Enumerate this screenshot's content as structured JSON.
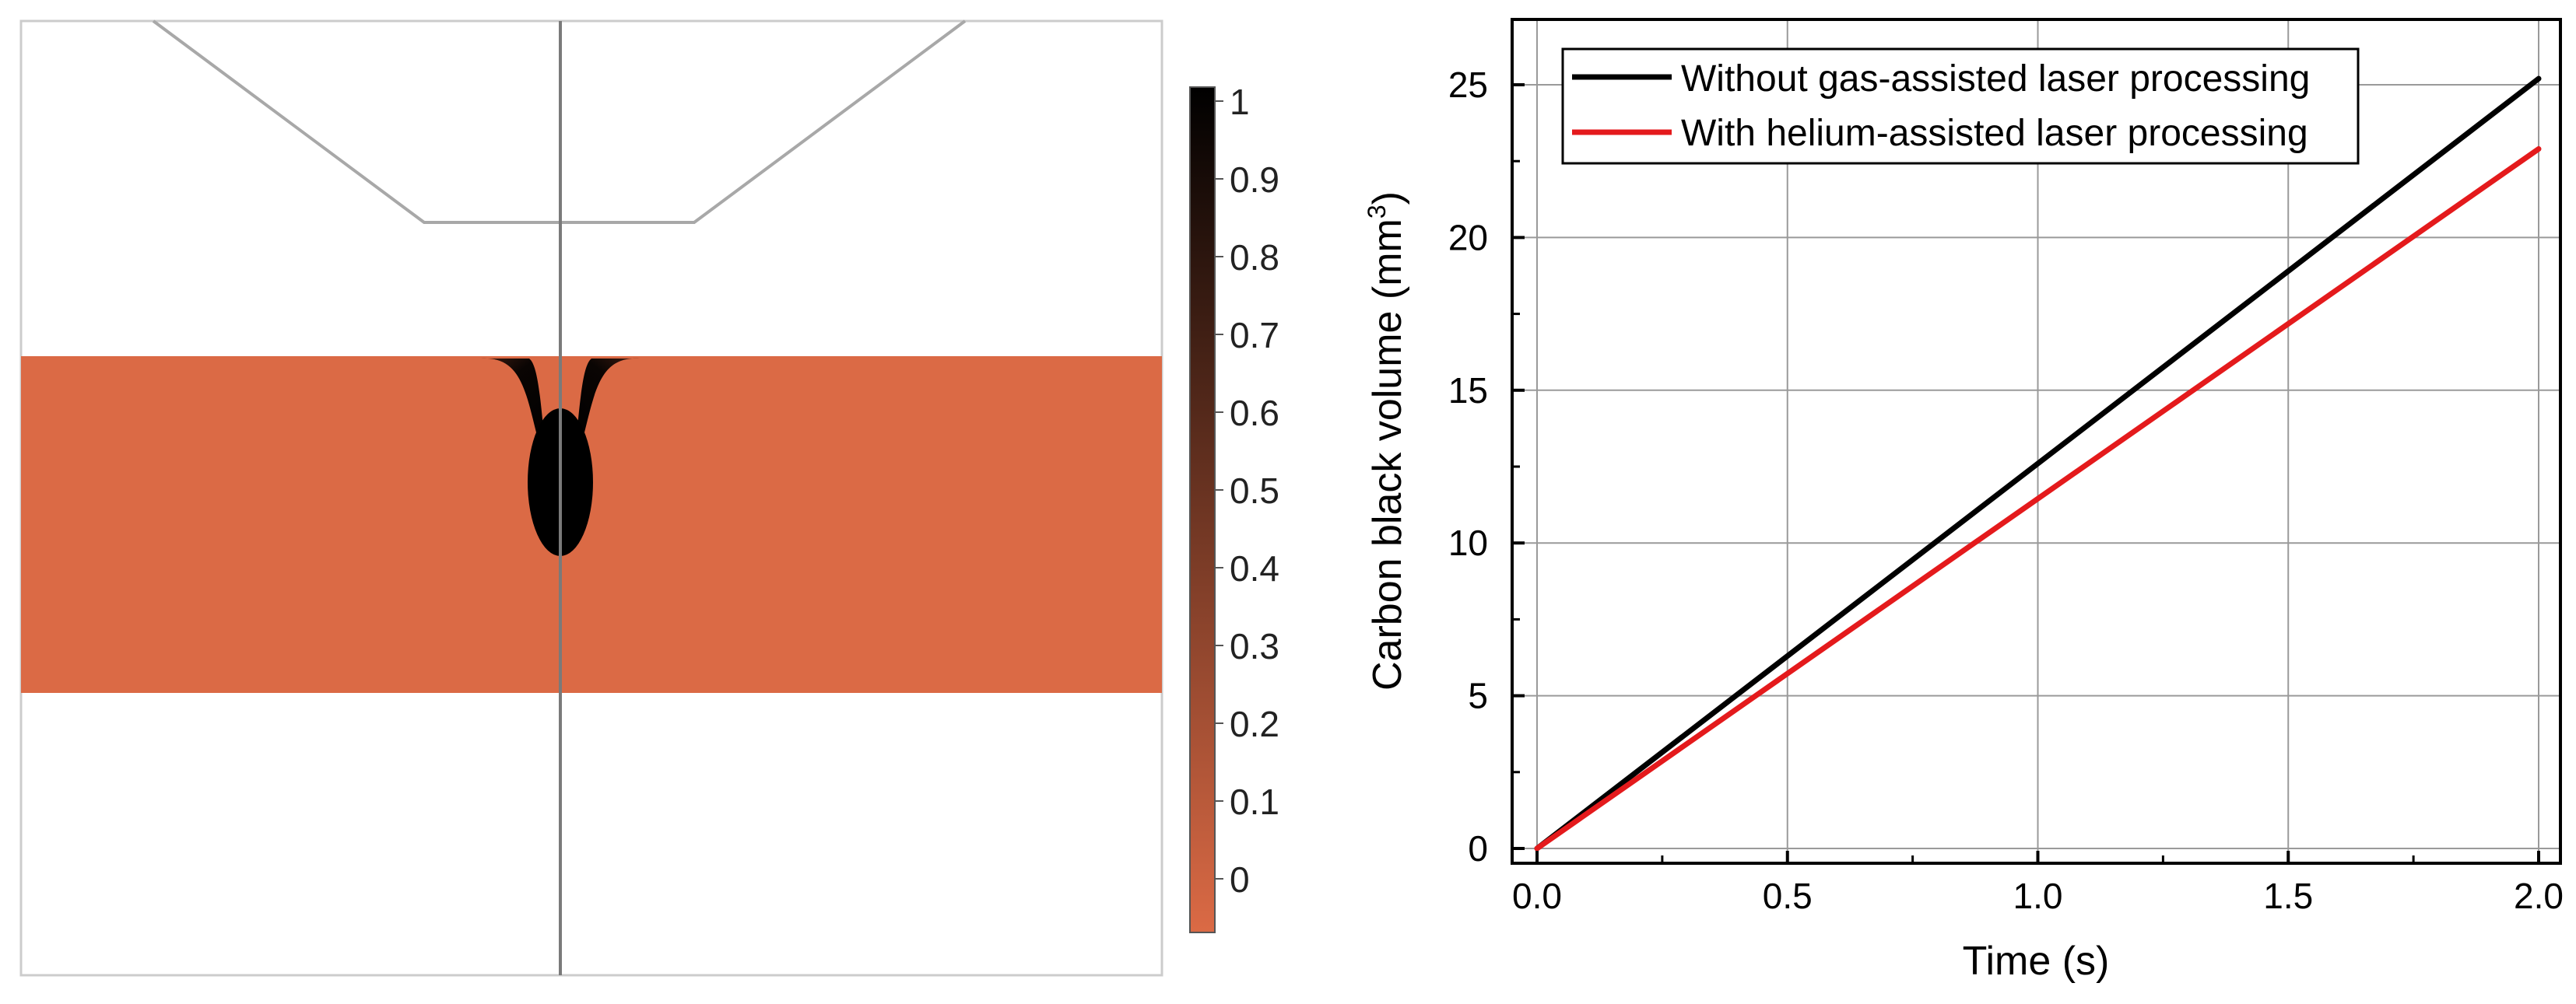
{
  "chart_data": [
    {
      "type": "heatmap",
      "colorbar": {
        "ticks": [
          "1",
          "0.9",
          "0.8",
          "0.7",
          "0.6",
          "0.5",
          "0.4",
          "0.3",
          "0.2",
          "0.1",
          "0"
        ],
        "range": [
          0,
          1
        ],
        "colors": {
          "low": "#db6a45",
          "high": "#000000"
        }
      },
      "colors": {
        "material": "#db6a45",
        "background": "#ffffff",
        "nozzle_outline": "#a8a8a8",
        "axis_line": "#7a7a7a"
      }
    },
    {
      "type": "line",
      "xlabel": "Time (s)",
      "ylabel_main": "Carbon black volume (mm",
      "ylabel_sup": "3",
      "ylabel_tail": ")",
      "xlim": [
        0.0,
        2.0
      ],
      "ylim": [
        0,
        25
      ],
      "xticks": [
        "0.0",
        "0.5",
        "1.0",
        "1.5",
        "2.0"
      ],
      "yticks": [
        "0",
        "5",
        "10",
        "15",
        "20",
        "25"
      ],
      "grid": true,
      "legend_position": "top-left",
      "series": [
        {
          "name": "Without gas-assisted laser processing",
          "color": "#000000",
          "x": [
            0.0,
            2.0
          ],
          "y": [
            0.0,
            25.2
          ]
        },
        {
          "name": "With helium-assisted laser processing",
          "color": "#e41a1c",
          "x": [
            0.0,
            2.0
          ],
          "y": [
            0.0,
            22.9
          ]
        }
      ]
    }
  ]
}
